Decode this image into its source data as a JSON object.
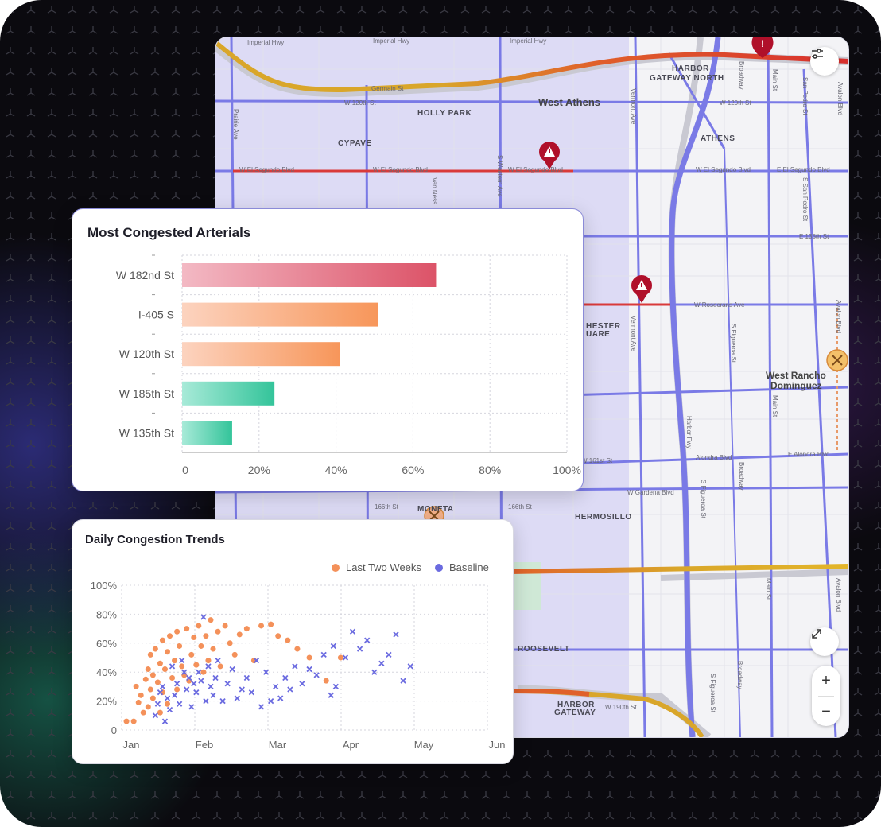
{
  "map": {
    "area_labels": [
      {
        "id": "holly-park",
        "text": "HOLLY PARK"
      },
      {
        "id": "cypave",
        "text": "CYPAVE"
      },
      {
        "id": "west-athens",
        "text": "West Athens"
      },
      {
        "id": "harbor-gateway-north-1",
        "text": "HARBOR"
      },
      {
        "id": "harbor-gateway-north-2",
        "text": "GATEWAY NORTH"
      },
      {
        "id": "athens",
        "text": "ATHENS"
      },
      {
        "id": "chester-square-1",
        "text": "HESTER"
      },
      {
        "id": "chester-square-2",
        "text": "UARE"
      },
      {
        "id": "west-rancho-1",
        "text": "West Rancho"
      },
      {
        "id": "west-rancho-2",
        "text": "Dominguez"
      },
      {
        "id": "moneta",
        "text": "MONETA"
      },
      {
        "id": "hermosillo",
        "text": "HERMOSILLO"
      },
      {
        "id": "roosevelt",
        "text": "ROOSEVELT"
      },
      {
        "id": "harbor-gateway-1",
        "text": "HARBOR"
      },
      {
        "id": "harbor-gateway-2",
        "text": "GATEWAY"
      }
    ],
    "streets": {
      "w120": "W 120th St",
      "w120b": "W 120th St",
      "elsegundo1": "W El Segundo Blvd",
      "elsegundo2": "W El Segundo Blvd",
      "elsegundo3": "W El Segundo Blvd",
      "elsegundo4": "E El Segundo Blvd",
      "w135": "E 135th St",
      "rosecrans": "W Rosecrans Ave",
      "w161": "W 161st St",
      "alondra1": "Alondra Blvd",
      "alondra2": "E Alondra Blvd",
      "gardena": "W Gardena Blvd",
      "s166a": "166th St",
      "s166b": "166th St",
      "w190": "W 190th St",
      "vermont1": "Vermont Ave",
      "vermont2": "Vermont Ave",
      "broadway1": "Broadway",
      "broadway2": "Broadway",
      "broadway3": "Broadway",
      "mainst1": "Main St",
      "mainst2": "Main St",
      "mainst3": "Main St",
      "sanpedro1": "San Pedro St",
      "sanpedro2": "S San Pedro St",
      "avalon1": "Avalon Blvd",
      "avalon2": "Avalon Blvd",
      "avalon3": "Avalon Blvd",
      "figueroa1": "S Figueroa St",
      "figueroa2": "S Figueroa St",
      "figueroa3": "S Figueroa St",
      "vanness": "Van Ness",
      "western": "S Western Ave",
      "prairie": "Prairie Ave",
      "harbor": "Harbor Fwy",
      "imperial1": "Imperial Hwy",
      "imperial2": "Imperial Hwy",
      "imperial3": "Imperial Hwy",
      "germain": "Germain St"
    }
  },
  "bar_chart": {
    "title": "Most Congested Arterials",
    "chart_data": {
      "type": "bar",
      "orientation": "horizontal",
      "categories": [
        "W 182nd St",
        "I-405 S",
        "W 120th St",
        "W 185th St",
        "W 135th St"
      ],
      "values": [
        66,
        51,
        41,
        24,
        13
      ],
      "colors": [
        [
          "#f3b9c4",
          "#dc5368"
        ],
        [
          "#fcd3bf",
          "#f7965a"
        ],
        [
          "#fcd3bf",
          "#f7965a"
        ],
        [
          "#a8ead8",
          "#33c49a"
        ],
        [
          "#a8ead8",
          "#33c49a"
        ]
      ],
      "xticks": [
        "0",
        "20%",
        "40%",
        "60%",
        "80%",
        "100%"
      ],
      "xlim": [
        0,
        100
      ],
      "grid": true
    }
  },
  "scatter_chart": {
    "title": "Daily Congestion Trends",
    "chart_data": {
      "type": "scatter",
      "xticks": [
        "Jan",
        "Feb",
        "Mar",
        "Apr",
        "May",
        "Jun"
      ],
      "yticks": [
        "0",
        "20%",
        "40%",
        "60%",
        "80%",
        "100%"
      ],
      "ylim": [
        0,
        100
      ],
      "legend_position": "top-right",
      "series": [
        {
          "name": "Last Two Weeks",
          "color": "#f4915a",
          "marker": "circle",
          "points": [
            [
              "2024-01-03",
              6
            ],
            [
              "2024-01-06",
              6
            ],
            [
              "2024-01-07",
              30
            ],
            [
              "2024-01-08",
              19
            ],
            [
              "2024-01-09",
              24
            ],
            [
              "2024-01-10",
              12
            ],
            [
              "2024-01-11",
              35
            ],
            [
              "2024-01-12",
              42
            ],
            [
              "2024-01-12",
              16
            ],
            [
              "2024-01-13",
              28
            ],
            [
              "2024-01-13",
              52
            ],
            [
              "2024-01-14",
              38
            ],
            [
              "2024-01-14",
              22
            ],
            [
              "2024-01-15",
              56
            ],
            [
              "2024-01-16",
              33
            ],
            [
              "2024-01-17",
              12
            ],
            [
              "2024-01-17",
              46
            ],
            [
              "2024-01-18",
              62
            ],
            [
              "2024-01-18",
              26
            ],
            [
              "2024-01-19",
              42
            ],
            [
              "2024-01-20",
              54
            ],
            [
              "2024-01-20",
              18
            ],
            [
              "2024-01-21",
              65
            ],
            [
              "2024-01-22",
              36
            ],
            [
              "2024-01-23",
              48
            ],
            [
              "2024-01-24",
              28
            ],
            [
              "2024-01-24",
              68
            ],
            [
              "2024-01-25",
              58
            ],
            [
              "2024-01-26",
              44
            ],
            [
              "2024-01-27",
              38
            ],
            [
              "2024-01-28",
              70
            ],
            [
              "2024-01-29",
              34
            ],
            [
              "2024-01-30",
              52
            ],
            [
              "2024-01-31",
              64
            ],
            [
              "2024-02-01",
              45
            ],
            [
              "2024-02-02",
              72
            ],
            [
              "2024-02-03",
              58
            ],
            [
              "2024-02-04",
              40
            ],
            [
              "2024-02-05",
              65
            ],
            [
              "2024-02-06",
              48
            ],
            [
              "2024-02-07",
              76
            ],
            [
              "2024-02-08",
              56
            ],
            [
              "2024-02-10",
              68
            ],
            [
              "2024-02-11",
              44
            ],
            [
              "2024-02-13",
              72
            ],
            [
              "2024-02-15",
              60
            ],
            [
              "2024-02-17",
              52
            ],
            [
              "2024-02-19",
              66
            ],
            [
              "2024-02-22",
              70
            ],
            [
              "2024-02-25",
              48
            ],
            [
              "2024-02-28",
              72
            ],
            [
              "2024-03-03",
              73
            ],
            [
              "2024-03-06",
              65
            ],
            [
              "2024-03-10",
              62
            ],
            [
              "2024-03-14",
              56
            ],
            [
              "2024-03-19",
              50
            ],
            [
              "2024-03-26",
              34
            ],
            [
              "2024-04-01",
              50
            ]
          ]
        },
        {
          "name": "Baseline",
          "color": "#6b6be0",
          "marker": "x",
          "points": [
            [
              "2024-01-15",
              10
            ],
            [
              "2024-01-16",
              18
            ],
            [
              "2024-01-17",
              26
            ],
            [
              "2024-01-18",
              30
            ],
            [
              "2024-01-19",
              6
            ],
            [
              "2024-01-20",
              22
            ],
            [
              "2024-01-21",
              14
            ],
            [
              "2024-01-22",
              44
            ],
            [
              "2024-01-23",
              24
            ],
            [
              "2024-01-24",
              32
            ],
            [
              "2024-01-25",
              18
            ],
            [
              "2024-01-26",
              48
            ],
            [
              "2024-01-27",
              40
            ],
            [
              "2024-01-28",
              28
            ],
            [
              "2024-01-29",
              36
            ],
            [
              "2024-01-30",
              16
            ],
            [
              "2024-01-31",
              32
            ],
            [
              "2024-02-01",
              26
            ],
            [
              "2024-02-02",
              40
            ],
            [
              "2024-02-03",
              34
            ],
            [
              "2024-02-04",
              78
            ],
            [
              "2024-02-05",
              20
            ],
            [
              "2024-02-06",
              44
            ],
            [
              "2024-02-07",
              30
            ],
            [
              "2024-02-08",
              24
            ],
            [
              "2024-02-09",
              36
            ],
            [
              "2024-02-10",
              48
            ],
            [
              "2024-02-12",
              20
            ],
            [
              "2024-02-14",
              32
            ],
            [
              "2024-02-16",
              42
            ],
            [
              "2024-02-18",
              22
            ],
            [
              "2024-02-20",
              28
            ],
            [
              "2024-02-22",
              36
            ],
            [
              "2024-02-24",
              26
            ],
            [
              "2024-02-26",
              48
            ],
            [
              "2024-02-28",
              16
            ],
            [
              "2024-03-01",
              40
            ],
            [
              "2024-03-03",
              20
            ],
            [
              "2024-03-05",
              30
            ],
            [
              "2024-03-07",
              22
            ],
            [
              "2024-03-09",
              36
            ],
            [
              "2024-03-11",
              28
            ],
            [
              "2024-03-13",
              44
            ],
            [
              "2024-03-16",
              32
            ],
            [
              "2024-03-19",
              42
            ],
            [
              "2024-03-22",
              38
            ],
            [
              "2024-03-25",
              52
            ],
            [
              "2024-03-29",
              58
            ],
            [
              "2024-04-03",
              50
            ],
            [
              "2024-04-06",
              68
            ],
            [
              "2024-04-09",
              56
            ],
            [
              "2024-04-12",
              62
            ],
            [
              "2024-04-15",
              40
            ],
            [
              "2024-04-18",
              46
            ],
            [
              "2024-04-21",
              52
            ],
            [
              "2024-04-24",
              66
            ],
            [
              "2024-04-27",
              34
            ],
            [
              "2024-04-30",
              44
            ],
            [
              "2024-03-28",
              24
            ],
            [
              "2024-03-30",
              30
            ]
          ]
        }
      ]
    }
  }
}
